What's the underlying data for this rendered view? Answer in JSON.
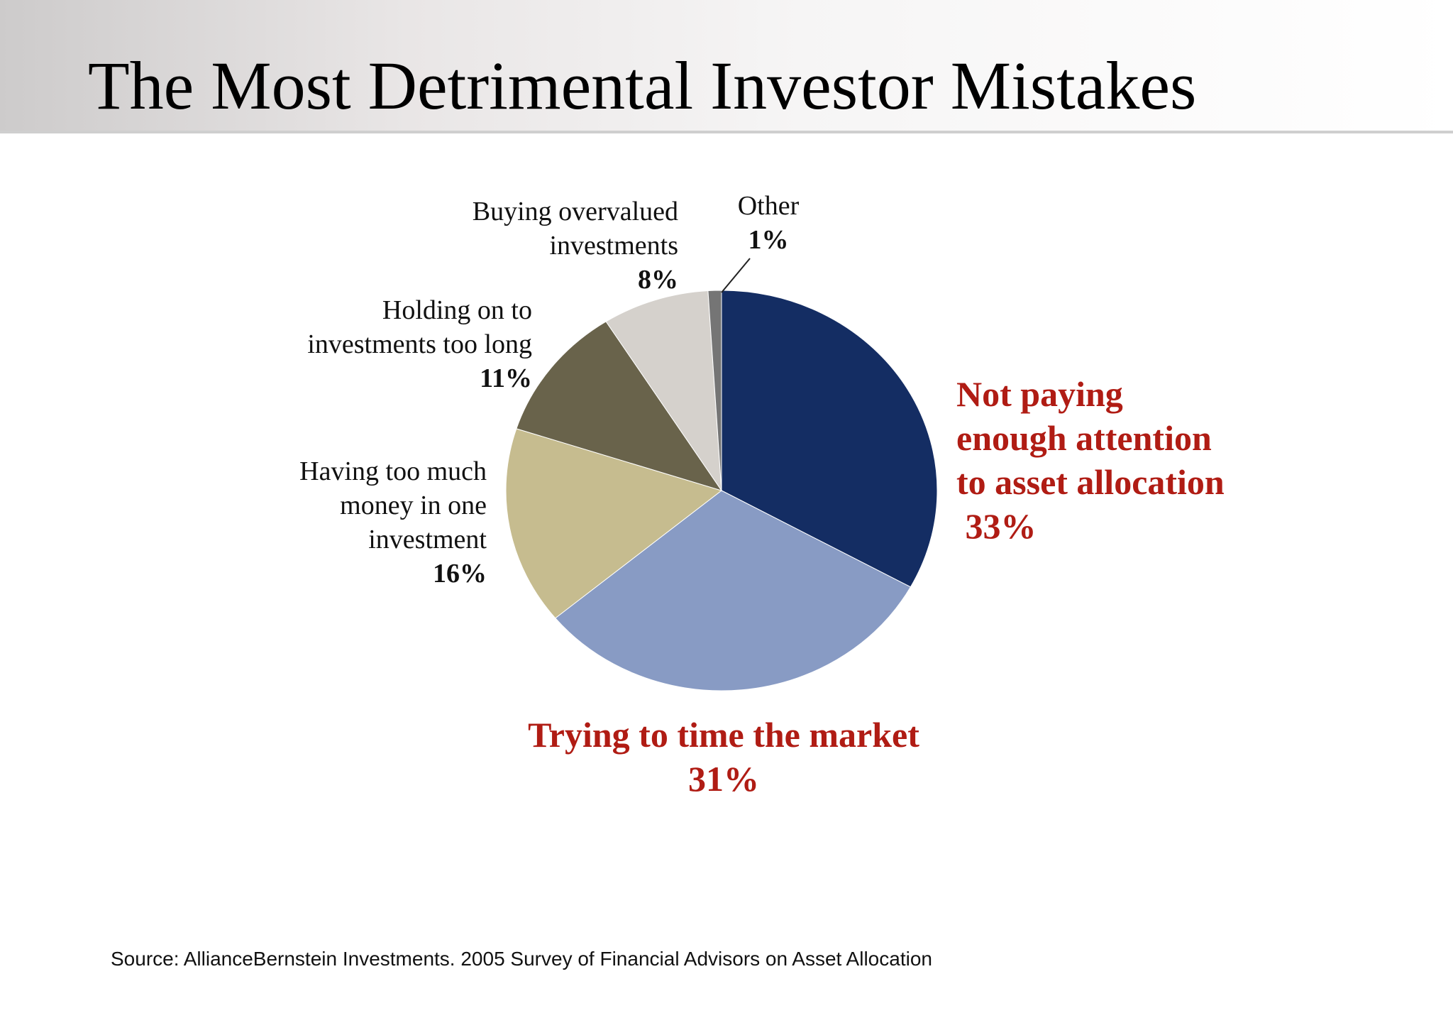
{
  "slide": {
    "title": "The Most Detrimental Investor Mistakes",
    "source": "Source: AllianceBernstein Investments. 2005 Survey of Financial Advisors on Asset Allocation"
  },
  "chart_data": {
    "type": "pie",
    "title": "The Most Detrimental Investor Mistakes",
    "slices": [
      {
        "label": "Not paying enough attention to asset allocation",
        "value": 33,
        "value_label": "33%",
        "color": "#142d63",
        "highlight": true
      },
      {
        "label": "Trying to time the market",
        "value": 31,
        "value_label": "31%",
        "color": "#889bc4",
        "highlight": true
      },
      {
        "label": "Having too much money in one investment",
        "value": 16,
        "value_label": "16%",
        "color": "#c6bc8f",
        "highlight": false
      },
      {
        "label": "Holding on to investments too long",
        "value": 11,
        "value_label": "11%",
        "color": "#69634b",
        "highlight": false
      },
      {
        "label": "Buying overvalued investments",
        "value": 8,
        "value_label": "8%",
        "color": "#d5d1cc",
        "highlight": false
      },
      {
        "label": "Other",
        "value": 1,
        "value_label": "1%",
        "color": "#757575",
        "highlight": false
      }
    ],
    "start": "12 o'clock",
    "direction": "clockwise",
    "legend": "none (labels beside slices)"
  },
  "labels": {
    "asset_allocation": {
      "lines": [
        "Not paying",
        "enough attention",
        "to asset allocation"
      ],
      "pct": " 33%"
    },
    "time_market": {
      "lines": [
        "Trying to time the market"
      ],
      "pct": "31%"
    },
    "too_much_money": {
      "lines": [
        "Having too much",
        "money in one",
        "investment"
      ],
      "pct": "16%"
    },
    "holding_too_long": {
      "lines": [
        "Holding on to",
        "investments too long"
      ],
      "pct": "11%"
    },
    "overvalued": {
      "lines": [
        "Buying overvalued",
        "investments"
      ],
      "pct": "8%"
    },
    "other": {
      "lines": [
        "Other"
      ],
      "pct": "1%"
    }
  },
  "colors": {
    "highlight_text": "#b01c14",
    "body_text": "#111111"
  }
}
